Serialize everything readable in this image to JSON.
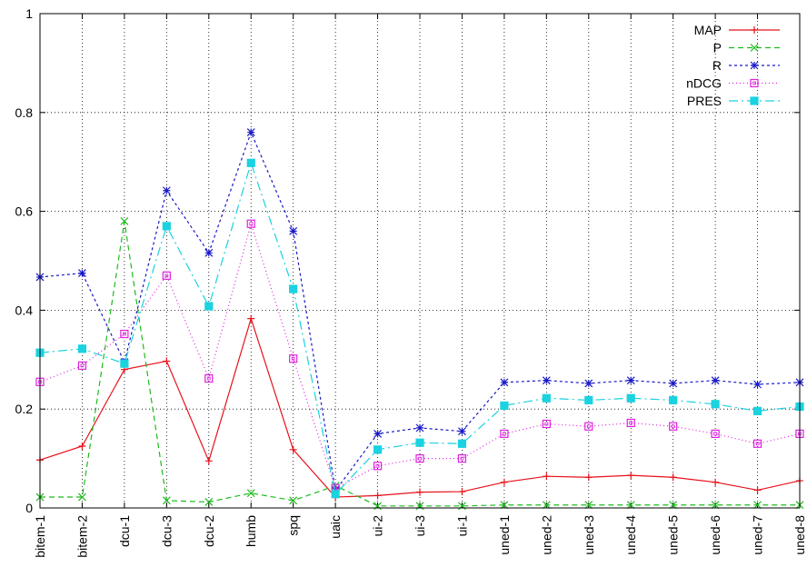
{
  "chart_data": {
    "type": "line",
    "title": "",
    "xlabel": "",
    "ylabel": "",
    "ylim": [
      0,
      1
    ],
    "yticks": [
      "0",
      "0.2",
      "0.4",
      "0.6",
      "0.8",
      "1"
    ],
    "grid": true,
    "legend_position": "top-right",
    "categories": [
      "bitem-1",
      "bitem-2",
      "dcu-1",
      "dcu-3",
      "dcu-2",
      "humb",
      "spq",
      "uaic",
      "ui-2",
      "ui-3",
      "ui-1",
      "uned-1",
      "uned-2",
      "uned-3",
      "uned-4",
      "uned-5",
      "uned-6",
      "uned-7",
      "uned-8"
    ],
    "series": [
      {
        "name": "MAP",
        "color": "#e8111b",
        "dash": "",
        "marker": "plus",
        "values": [
          0.097,
          0.125,
          0.28,
          0.297,
          0.095,
          0.383,
          0.118,
          0.022,
          0.025,
          0.032,
          0.033,
          0.052,
          0.064,
          0.062,
          0.066,
          0.062,
          0.052,
          0.036,
          0.055
        ]
      },
      {
        "name": "P",
        "color": "#1dbb1d",
        "dash": "6,4",
        "marker": "cross",
        "values": [
          0.022,
          0.022,
          0.58,
          0.015,
          0.012,
          0.03,
          0.015,
          0.045,
          0.004,
          0.004,
          0.004,
          0.006,
          0.006,
          0.006,
          0.006,
          0.006,
          0.006,
          0.006,
          0.006
        ]
      },
      {
        "name": "R",
        "color": "#1919c8",
        "dash": "3,3",
        "marker": "star",
        "values": [
          0.467,
          0.475,
          0.295,
          0.642,
          0.516,
          0.76,
          0.56,
          0.035,
          0.15,
          0.162,
          0.155,
          0.254,
          0.258,
          0.252,
          0.258,
          0.252,
          0.258,
          0.25,
          0.254
        ]
      },
      {
        "name": "nDCG",
        "color": "#e020e0",
        "dash": "1,3",
        "marker": "square-open",
        "values": [
          0.255,
          0.288,
          0.352,
          0.47,
          0.262,
          0.575,
          0.302,
          0.04,
          0.085,
          0.1,
          0.1,
          0.15,
          0.17,
          0.165,
          0.172,
          0.165,
          0.15,
          0.13,
          0.15
        ]
      },
      {
        "name": "PRES",
        "color": "#1ad2e0",
        "dash": "10,4,2,4",
        "marker": "square-filled",
        "values": [
          0.314,
          0.322,
          0.292,
          0.57,
          0.408,
          0.698,
          0.443,
          0.028,
          0.118,
          0.132,
          0.13,
          0.207,
          0.222,
          0.218,
          0.222,
          0.218,
          0.21,
          0.196,
          0.205
        ]
      }
    ]
  }
}
